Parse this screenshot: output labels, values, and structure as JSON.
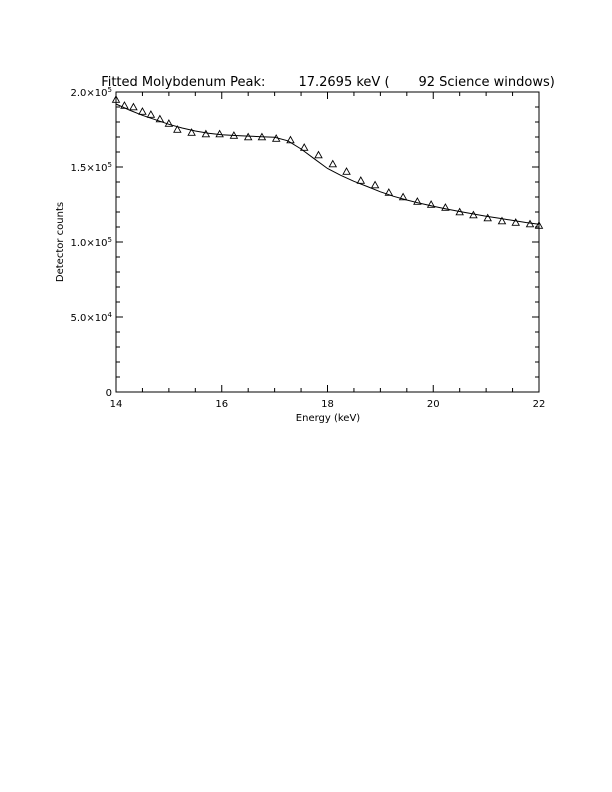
{
  "chart_data": {
    "type": "scatter",
    "title": "Fitted Molybdenum Peak:        17.2695 keV (       92 Science windows)",
    "xlabel": "Energy (keV)",
    "ylabel": "Detector counts",
    "xlim": [
      14,
      22
    ],
    "ylim": [
      0,
      200000
    ],
    "x_ticks": [
      {
        "value": 14,
        "label": "14"
      },
      {
        "value": 16,
        "label": "16"
      },
      {
        "value": 18,
        "label": "18"
      },
      {
        "value": 20,
        "label": "20"
      },
      {
        "value": 22,
        "label": "22"
      }
    ],
    "y_ticks": [
      {
        "value": 0,
        "mantissa": "0",
        "exponent": ""
      },
      {
        "value": 50000,
        "mantissa": "5.0×10",
        "exponent": "4"
      },
      {
        "value": 100000,
        "mantissa": "1.0×10",
        "exponent": "5"
      },
      {
        "value": 150000,
        "mantissa": "1.5×10",
        "exponent": "5"
      },
      {
        "value": 200000,
        "mantissa": "2.0×10",
        "exponent": "5"
      }
    ],
    "grid": false,
    "series": [
      {
        "marker": "triangle",
        "x": [
          14.0,
          14.16,
          14.33,
          14.5,
          14.66,
          14.83,
          15.0,
          15.16,
          15.43,
          15.7,
          15.96,
          16.23,
          16.5,
          16.76,
          17.03,
          17.3,
          17.56,
          17.83,
          18.1,
          18.36,
          18.63,
          18.9,
          19.16,
          19.43,
          19.7,
          19.96,
          20.23,
          20.5,
          20.76,
          21.03,
          21.3,
          21.56,
          21.83,
          22.0
        ],
        "y": [
          195000,
          191000,
          190000,
          187000,
          185000,
          182000,
          179000,
          175000,
          173000,
          172000,
          172000,
          171000,
          170000,
          170000,
          169000,
          168000,
          163000,
          158000,
          152000,
          147000,
          141000,
          138000,
          133000,
          130000,
          127000,
          125000,
          123000,
          120000,
          118000,
          116000,
          114000,
          113000,
          112000,
          111000
        ]
      },
      {
        "marker": "line",
        "x": [
          14.0,
          14.25,
          14.5,
          14.75,
          15.0,
          15.25,
          15.5,
          15.75,
          16.0,
          16.25,
          16.5,
          16.75,
          17.0,
          17.25,
          17.5,
          17.75,
          18.0,
          18.25,
          18.5,
          18.75,
          19.0,
          19.25,
          19.5,
          19.75,
          20.0,
          20.25,
          20.5,
          20.75,
          21.0,
          21.25,
          21.5,
          21.75,
          22.0
        ],
        "y": [
          192000,
          188000,
          184500,
          181500,
          178500,
          176000,
          174000,
          172500,
          171500,
          171000,
          170600,
          170200,
          169800,
          167500,
          162000,
          155500,
          149000,
          144500,
          140500,
          137000,
          133500,
          130500,
          128000,
          125800,
          123800,
          122000,
          120300,
          118700,
          117200,
          115800,
          114400,
          113000,
          111800
        ]
      }
    ]
  }
}
